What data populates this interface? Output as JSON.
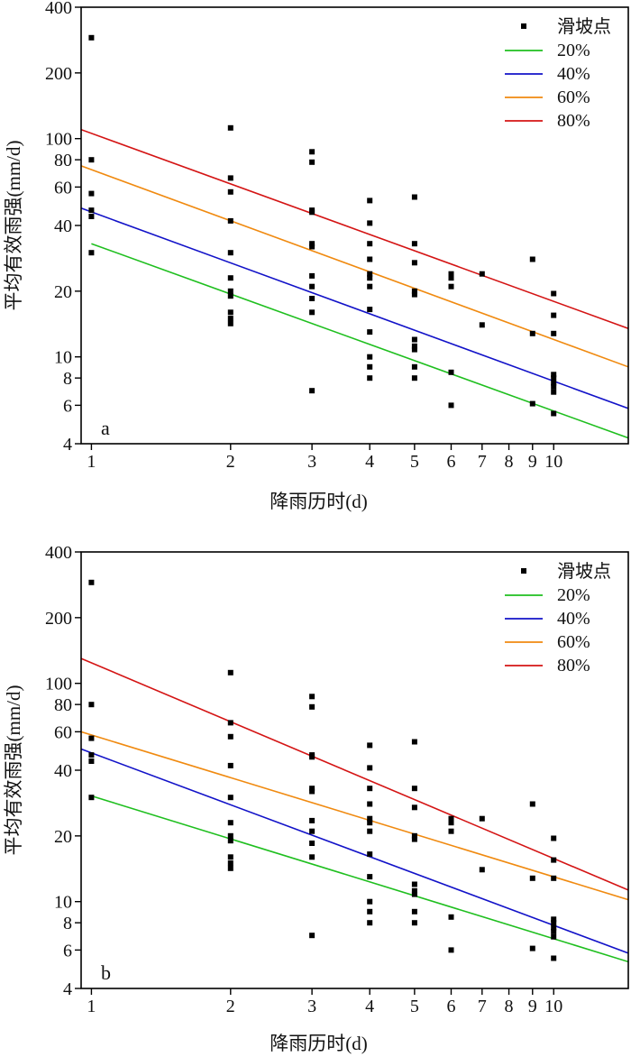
{
  "chart_data": [
    {
      "type": "scatter",
      "panel_label": "a",
      "xlabel": "降雨历时(d)",
      "ylabel": "平均有效雨强(mm/d)",
      "x_scale": "log",
      "y_scale": "log",
      "xlim": [
        0.95,
        14.5
      ],
      "ylim": [
        4,
        400
      ],
      "x_ticks": [
        1,
        2,
        3,
        4,
        5,
        6,
        7,
        8,
        9,
        10
      ],
      "y_ticks": [
        4,
        6,
        8,
        10,
        20,
        40,
        60,
        80,
        100,
        200,
        400
      ],
      "grid": false,
      "legend_position": "top-right",
      "points_name": "滑坡点",
      "points": [
        [
          1,
          290
        ],
        [
          1,
          80
        ],
        [
          1,
          56
        ],
        [
          1,
          47
        ],
        [
          1,
          44
        ],
        [
          1,
          30
        ],
        [
          2,
          112
        ],
        [
          2,
          66
        ],
        [
          2,
          57
        ],
        [
          2,
          42
        ],
        [
          2,
          30
        ],
        [
          2,
          23
        ],
        [
          2,
          20
        ],
        [
          2,
          19
        ],
        [
          2,
          16
        ],
        [
          2,
          15
        ],
        [
          2,
          14.2
        ],
        [
          3,
          87
        ],
        [
          3,
          78
        ],
        [
          3,
          47
        ],
        [
          3,
          46
        ],
        [
          3,
          33
        ],
        [
          3,
          32
        ],
        [
          3,
          23.5
        ],
        [
          3,
          21
        ],
        [
          3,
          18.5
        ],
        [
          3,
          16
        ],
        [
          3,
          7
        ],
        [
          4,
          52
        ],
        [
          4,
          41
        ],
        [
          4,
          33
        ],
        [
          4,
          28
        ],
        [
          4,
          24
        ],
        [
          4,
          23
        ],
        [
          4,
          21
        ],
        [
          4,
          16.5
        ],
        [
          4,
          13
        ],
        [
          4,
          10
        ],
        [
          4,
          9
        ],
        [
          4,
          8
        ],
        [
          5,
          54
        ],
        [
          5,
          33
        ],
        [
          5,
          27
        ],
        [
          5,
          20
        ],
        [
          5,
          19.3
        ],
        [
          5,
          12
        ],
        [
          5,
          11.2
        ],
        [
          5,
          10.8
        ],
        [
          5,
          9
        ],
        [
          5,
          8
        ],
        [
          6,
          24
        ],
        [
          6,
          23
        ],
        [
          6,
          21
        ],
        [
          6,
          8.5
        ],
        [
          6,
          6
        ],
        [
          7,
          24
        ],
        [
          7,
          14
        ],
        [
          9,
          28
        ],
        [
          9,
          12.8
        ],
        [
          9,
          6.1
        ],
        [
          10,
          19.5
        ],
        [
          10,
          15.5
        ],
        [
          10,
          12.8
        ],
        [
          10,
          8.3
        ],
        [
          10,
          8
        ],
        [
          10,
          7.6
        ],
        [
          10,
          7.3
        ],
        [
          10,
          6.9
        ],
        [
          10,
          5.5
        ]
      ],
      "series": [
        {
          "name": "20%",
          "color": "#1fbf1f",
          "x": [
            1,
            14.5
          ],
          "y": [
            33,
            4.25
          ]
        },
        {
          "name": "40%",
          "color": "#1212c8",
          "x": [
            0.95,
            14.5
          ],
          "y": [
            48,
            5.8
          ]
        },
        {
          "name": "60%",
          "color": "#f08a10",
          "x": [
            0.95,
            14.5
          ],
          "y": [
            75,
            9.0
          ]
        },
        {
          "name": "80%",
          "color": "#d41414",
          "x": [
            0.95,
            14.5
          ],
          "y": [
            110,
            13.5
          ]
        }
      ]
    },
    {
      "type": "scatter",
      "panel_label": "b",
      "xlabel": "降雨历时(d)",
      "ylabel": "平均有效雨强(mm/d)",
      "x_scale": "log",
      "y_scale": "log",
      "xlim": [
        0.95,
        14.5
      ],
      "ylim": [
        4,
        400
      ],
      "x_ticks": [
        1,
        2,
        3,
        4,
        5,
        6,
        7,
        8,
        9,
        10
      ],
      "y_ticks": [
        4,
        6,
        8,
        10,
        20,
        40,
        60,
        80,
        100,
        200,
        400
      ],
      "grid": false,
      "legend_position": "top-right",
      "points_name": "滑坡点",
      "points": [
        [
          1,
          290
        ],
        [
          1,
          80
        ],
        [
          1,
          56
        ],
        [
          1,
          47
        ],
        [
          1,
          44
        ],
        [
          1,
          30
        ],
        [
          2,
          112
        ],
        [
          2,
          66
        ],
        [
          2,
          57
        ],
        [
          2,
          42
        ],
        [
          2,
          30
        ],
        [
          2,
          23
        ],
        [
          2,
          20
        ],
        [
          2,
          19
        ],
        [
          2,
          16
        ],
        [
          2,
          15
        ],
        [
          2,
          14.2
        ],
        [
          3,
          87
        ],
        [
          3,
          78
        ],
        [
          3,
          47
        ],
        [
          3,
          46
        ],
        [
          3,
          33
        ],
        [
          3,
          32
        ],
        [
          3,
          23.5
        ],
        [
          3,
          21
        ],
        [
          3,
          18.5
        ],
        [
          3,
          16
        ],
        [
          3,
          7
        ],
        [
          4,
          52
        ],
        [
          4,
          41
        ],
        [
          4,
          33
        ],
        [
          4,
          28
        ],
        [
          4,
          24
        ],
        [
          4,
          23
        ],
        [
          4,
          21
        ],
        [
          4,
          16.5
        ],
        [
          4,
          13
        ],
        [
          4,
          10
        ],
        [
          4,
          9
        ],
        [
          4,
          8
        ],
        [
          5,
          54
        ],
        [
          5,
          33
        ],
        [
          5,
          27
        ],
        [
          5,
          20
        ],
        [
          5,
          19.3
        ],
        [
          5,
          12
        ],
        [
          5,
          11.2
        ],
        [
          5,
          10.8
        ],
        [
          5,
          9
        ],
        [
          5,
          8
        ],
        [
          6,
          24
        ],
        [
          6,
          23
        ],
        [
          6,
          21
        ],
        [
          6,
          8.5
        ],
        [
          6,
          6
        ],
        [
          7,
          24
        ],
        [
          7,
          14
        ],
        [
          9,
          28
        ],
        [
          9,
          12.8
        ],
        [
          9,
          6.1
        ],
        [
          10,
          19.5
        ],
        [
          10,
          15.5
        ],
        [
          10,
          12.8
        ],
        [
          10,
          8.3
        ],
        [
          10,
          8
        ],
        [
          10,
          7.6
        ],
        [
          10,
          7.3
        ],
        [
          10,
          6.9
        ],
        [
          10,
          5.5
        ]
      ],
      "series": [
        {
          "name": "20%",
          "color": "#1fbf1f",
          "x": [
            1,
            14.5
          ],
          "y": [
            30.5,
            5.3
          ]
        },
        {
          "name": "40%",
          "color": "#1212c8",
          "x": [
            0.95,
            14.5
          ],
          "y": [
            50,
            5.8
          ]
        },
        {
          "name": "60%",
          "color": "#f08a10",
          "x": [
            0.95,
            14.5
          ],
          "y": [
            60,
            10.2
          ]
        },
        {
          "name": "80%",
          "color": "#d41414",
          "x": [
            0.95,
            14.5
          ],
          "y": [
            130,
            11.3
          ]
        }
      ]
    }
  ]
}
